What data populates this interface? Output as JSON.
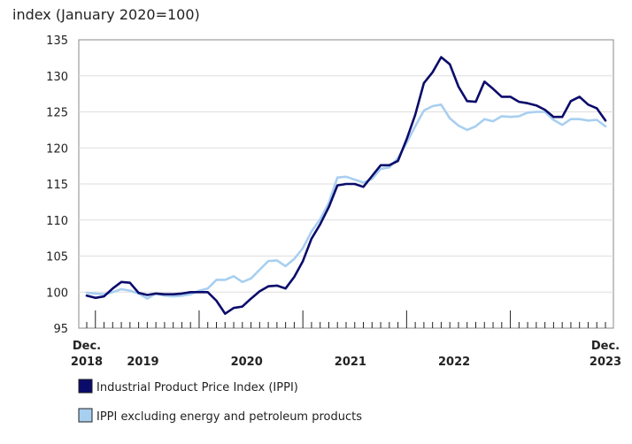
{
  "chart_data": {
    "type": "line",
    "title": "",
    "ylabel": "index (January 2020=100)",
    "xlabel": "",
    "ylim": [
      95,
      135
    ],
    "yticks": [
      95,
      100,
      105,
      110,
      115,
      120,
      125,
      130,
      135
    ],
    "x_start": "Dec. 2018",
    "x_end": "Dec. 2023",
    "n_points": 61,
    "x_labels": [
      {
        "index": 0,
        "line1": "Dec.",
        "line2": "2018"
      },
      {
        "index": 6.5,
        "line1": "",
        "line2": "2019"
      },
      {
        "index": 18.5,
        "line1": "",
        "line2": "2020"
      },
      {
        "index": 30.5,
        "line1": "",
        "line2": "2021"
      },
      {
        "index": 42.5,
        "line1": "",
        "line2": "2022"
      },
      {
        "index": 60,
        "line1": "Dec.",
        "line2": "2023"
      }
    ],
    "year_tick_indices": [
      1,
      13,
      25,
      37,
      49
    ],
    "legend": "bottom",
    "series": [
      {
        "name": "Industrial Product Price Index (IPPI)",
        "color": "#0b0b6b",
        "values": [
          99.5,
          99.2,
          99.4,
          100.5,
          101.4,
          101.3,
          99.9,
          99.6,
          99.8,
          99.7,
          99.7,
          99.8,
          100.0,
          100.0,
          100.0,
          98.8,
          97.0,
          97.8,
          98.0,
          99.1,
          100.1,
          100.8,
          100.9,
          100.5,
          102.1,
          104.3,
          107.4,
          109.4,
          111.8,
          114.8,
          115.0,
          115.0,
          114.6,
          116.1,
          117.6,
          117.6,
          118.2,
          121.2,
          124.6,
          129.0,
          130.5,
          132.6,
          131.6,
          128.5,
          126.5,
          126.4,
          129.2,
          128.2,
          127.1,
          127.1,
          126.4,
          126.2,
          125.9,
          125.3,
          124.3,
          124.3,
          126.5,
          127.1,
          126.0,
          125.5,
          123.8
        ]
      },
      {
        "name": "IPPI excluding energy and petroleum products",
        "color": "#a8cff0",
        "values": [
          99.9,
          99.8,
          99.7,
          100.0,
          100.4,
          100.2,
          99.8,
          99.1,
          99.8,
          99.5,
          99.4,
          99.5,
          99.7,
          100.2,
          100.5,
          101.7,
          101.7,
          102.2,
          101.4,
          101.9,
          103.1,
          104.3,
          104.4,
          103.6,
          104.6,
          106.1,
          108.4,
          110.1,
          112.4,
          115.9,
          116.0,
          115.6,
          115.2,
          115.7,
          117.1,
          117.3,
          118.6,
          120.7,
          123.0,
          125.2,
          125.8,
          126.0,
          124.1,
          123.1,
          122.5,
          123.0,
          124.0,
          123.7,
          124.4,
          124.3,
          124.4,
          124.9,
          125.0,
          125.0,
          123.9,
          123.2,
          124.0,
          124.0,
          123.8,
          123.9,
          123.0
        ]
      }
    ]
  }
}
